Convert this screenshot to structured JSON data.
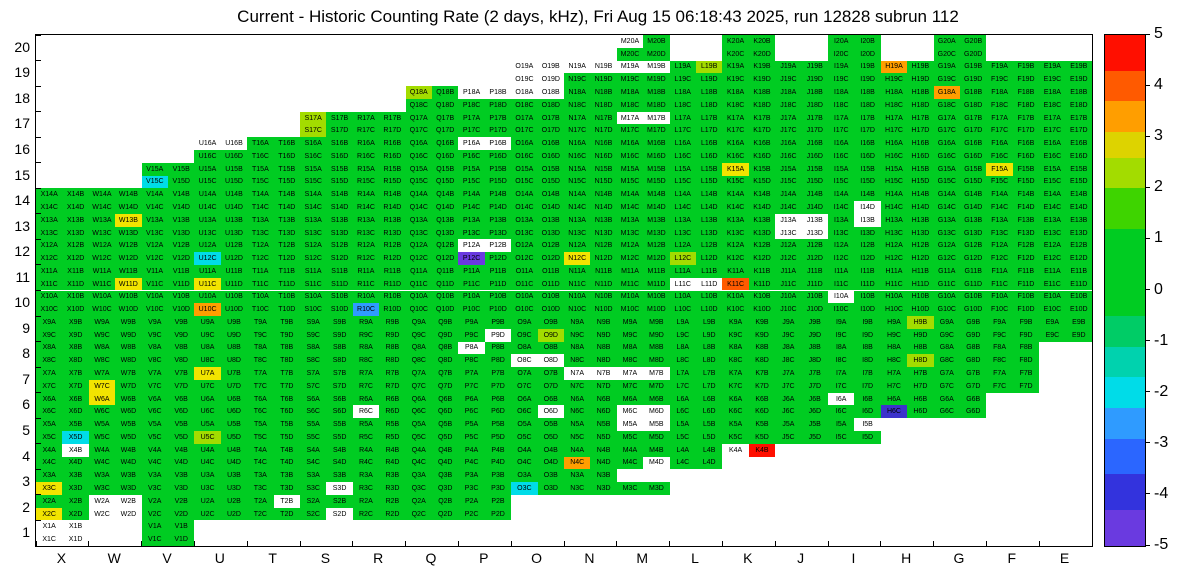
{
  "palette": {
    "green": "#00cc22",
    "white": "#ffffff",
    "yellow": "#f2e400",
    "yellowgreen": "#a3dc00",
    "orange": "#ff9e00",
    "redorange": "#ff5a00",
    "red": "#ff0f00",
    "cyan": "#00dce8",
    "blue": "#2f9bff",
    "indigo": "#3c33cc",
    "violet": "#6a3ae0"
  },
  "chart_data": {
    "type": "heatmap",
    "title": "Current - Historic Counting Rate (2 days, kHz), Fri Aug 15 06:18:43 2025, run 12828 subrun 112",
    "units": "kHz",
    "value_range": [
      -5,
      5
    ],
    "x_categories": [
      "X",
      "W",
      "V",
      "U",
      "T",
      "S",
      "R",
      "Q",
      "P",
      "O",
      "N",
      "M",
      "L",
      "K",
      "J",
      "I",
      "H",
      "G",
      "F",
      "E"
    ],
    "y_categories": [
      20,
      19,
      18,
      17,
      16,
      15,
      14,
      13,
      12,
      11,
      10,
      9,
      8,
      7,
      6,
      5,
      4,
      3,
      2,
      1
    ],
    "subcells": [
      "A",
      "B",
      "C",
      "D"
    ],
    "label_pattern": "{col}{row}{sub}",
    "default_color": "green",
    "default_value": 0,
    "rows": [
      {
        "row": 20,
        "cols": [
          "M",
          "K",
          "I",
          "G"
        ]
      },
      {
        "row": 19,
        "from": "O",
        "to": "E"
      },
      {
        "row": 18,
        "from": "Q",
        "to": "E"
      },
      {
        "row": 17,
        "from": "S",
        "to": "E"
      },
      {
        "row": 16,
        "from": "U",
        "to": "E"
      },
      {
        "row": 15,
        "from": "V",
        "to": "E"
      },
      {
        "row": 14,
        "from": "X",
        "to": "E"
      },
      {
        "row": 13,
        "from": "X",
        "to": "E"
      },
      {
        "row": 12,
        "from": "X",
        "to": "E"
      },
      {
        "row": 11,
        "from": "X",
        "to": "E"
      },
      {
        "row": 10,
        "from": "X",
        "to": "E"
      },
      {
        "row": 9,
        "from": "X",
        "to": "E"
      },
      {
        "row": 8,
        "from": "X",
        "to": "F"
      },
      {
        "row": 7,
        "from": "X",
        "to": "F"
      },
      {
        "row": 6,
        "from": "X",
        "to": "G"
      },
      {
        "row": 5,
        "from": "X",
        "to": "I"
      },
      {
        "row": 4,
        "from": "X",
        "to": "K"
      },
      {
        "row": 3,
        "from": "X",
        "to": "M"
      },
      {
        "row": 2,
        "from": "X",
        "to": "P"
      },
      {
        "row": 1,
        "cols": [
          "X",
          "V"
        ]
      }
    ],
    "missing_subcells": [
      "K4C",
      "K4D",
      "M3A",
      "M3B"
    ],
    "cell_colors": {
      "M20A": "white",
      "O19A": "white",
      "O19B": "white",
      "O19C": "white",
      "O19D": "white",
      "N19A": "white",
      "N19B": "white",
      "M19A": "white",
      "M19B": "white",
      "L19B": "yellowgreen",
      "H19A": "orange",
      "P18A": "white",
      "P18B": "white",
      "O18A": "white",
      "O18B": "white",
      "Q18A": "yellowgreen",
      "G18A": "orange",
      "M17A": "white",
      "M17B": "white",
      "S17A": "yellowgreen",
      "S17C": "yellowgreen",
      "U16A": "white",
      "U16B": "white",
      "P16A": "white",
      "P16B": "white",
      "V15C": "cyan",
      "K15A": "yellow",
      "F15A": "yellow",
      "I14D": "white",
      "W13B": "yellow",
      "J13A": "white",
      "J13B": "white",
      "J13C": "white",
      "J13D": "white",
      "I13B": "white",
      "U12C": "cyan",
      "P12A": "white",
      "P12B": "white",
      "P12C": "violet",
      "N12C": "yellow",
      "L12C": "yellowgreen",
      "W11D": "yellow",
      "U11C": "yellow",
      "L11C": "white",
      "L11D": "white",
      "K11C": "redorange",
      "U10C": "orange",
      "R10C": "blue",
      "I10A": "white",
      "O9D": "yellowgreen",
      "P9D": "white",
      "H9B": "yellowgreen",
      "P8A": "white",
      "O8C": "white",
      "O8D": "white",
      "H8D": "yellowgreen",
      "U7A": "yellow",
      "W7C": "yellow",
      "N7A": "white",
      "N7B": "white",
      "M7A": "white",
      "M7B": "white",
      "W6A": "yellow",
      "R6C": "white",
      "O6D": "white",
      "M6C": "white",
      "M6D": "white",
      "I6A": "white",
      "H6C": "indigo",
      "X5D": "cyan",
      "U5C": "yellowgreen",
      "M5A": "white",
      "M5B": "white",
      "I5B": "white",
      "X4B": "white",
      "N4C": "orange",
      "M4D": "white",
      "K4A": "white",
      "K4B": "red",
      "X3C": "yellow",
      "S3D": "white",
      "O3C": "cyan",
      "X2C": "yellow",
      "W2A": "white",
      "W2B": "white",
      "W2C": "white",
      "W2D": "white",
      "T2B": "white",
      "S2D": "white",
      "X1A": "white",
      "X1B": "white",
      "X1C": "white",
      "X1D": "white"
    },
    "color_values": {
      "green": 0,
      "yellowgreen": 2,
      "yellow": 2.5,
      "orange": 3.5,
      "redorange": 4.2,
      "red": 5,
      "cyan": -1.8,
      "blue": -2.8,
      "indigo": -3.8,
      "violet": -4.3,
      "white": null
    },
    "colorbar": {
      "ticks": [
        5,
        4,
        3,
        2,
        1,
        0,
        -1,
        -2,
        -3,
        -4,
        -5
      ],
      "bands": [
        {
          "color": "#ff0f00",
          "pct": 7
        },
        {
          "color": "#ff5a00",
          "pct": 6
        },
        {
          "color": "#ff9e00",
          "pct": 6
        },
        {
          "color": "#ddd300",
          "pct": 5
        },
        {
          "color": "#a3dc00",
          "pct": 6
        },
        {
          "color": "#3ed400",
          "pct": 8
        },
        {
          "color": "#00cc22",
          "pct": 17
        },
        {
          "color": "#00cc66",
          "pct": 6
        },
        {
          "color": "#00d2ae",
          "pct": 6
        },
        {
          "color": "#00dce8",
          "pct": 6
        },
        {
          "color": "#2f9bff",
          "pct": 6
        },
        {
          "color": "#2b66ff",
          "pct": 7
        },
        {
          "color": "#3333dd",
          "pct": 7
        },
        {
          "color": "#6a3ae0",
          "pct": 7
        }
      ]
    }
  }
}
